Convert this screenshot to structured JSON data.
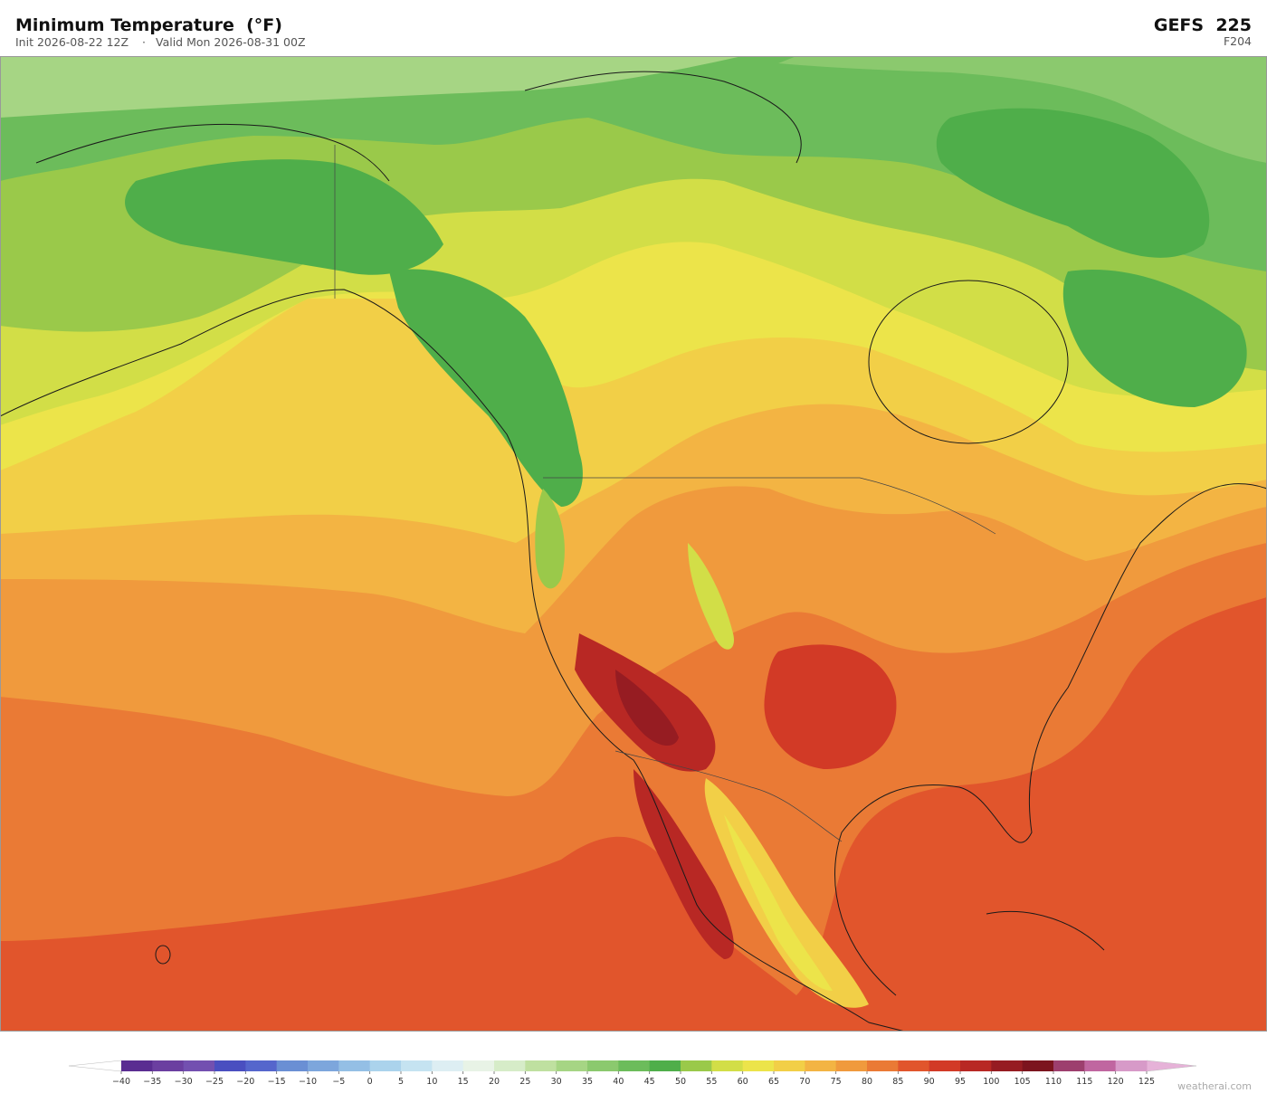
{
  "header": {
    "title": "Minimum Temperature  (°F)",
    "init": "Init 2026-08-22 12Z",
    "separator": "·",
    "valid": "Valid Mon 2026-08-31 00Z",
    "model": "GEFS  225",
    "forecast_hour": "F204"
  },
  "colorbar": {
    "range": [
      -40,
      125
    ],
    "ticks": [
      {
        "value": -40,
        "label": "−40"
      },
      {
        "value": -35,
        "label": "−35"
      },
      {
        "value": -30,
        "label": "−30"
      },
      {
        "value": -25,
        "label": "−25"
      },
      {
        "value": -20,
        "label": "−20"
      },
      {
        "value": -15,
        "label": "−15"
      },
      {
        "value": -10,
        "label": "−10"
      },
      {
        "value": -5,
        "label": "−5"
      },
      0,
      5,
      10,
      15,
      20,
      25,
      30,
      35,
      40,
      45,
      50,
      55,
      60,
      65,
      70,
      75,
      80,
      85,
      90,
      95,
      100,
      105,
      110,
      115,
      120,
      125
    ],
    "colors": [
      "#5a2d91",
      "#6b3fa0",
      "#7350b0",
      "#4a4fc0",
      "#5566cc",
      "#6a8fd4",
      "#7da6dc",
      "#94bfe5",
      "#abd3ec",
      "#c5e3f1",
      "#ddeef3",
      "#e8f3e6",
      "#d6ecc8",
      "#bfe0a0",
      "#a6d584",
      "#8bc96e",
      "#6cbc5b",
      "#4fae4a",
      "#9ac94a",
      "#d2de47",
      "#ece44a",
      "#f2cf47",
      "#f3b443",
      "#f09a3d",
      "#ea7a35",
      "#e1552c",
      "#d23a26",
      "#b82824",
      "#961c22",
      "#7c141e",
      "#9d3f6e",
      "#c066a0",
      "#d79ac8"
    ],
    "under_color": "#ffffff",
    "over_color": "#e6b2d8"
  },
  "footer": {
    "credit": "weatherai.com"
  }
}
